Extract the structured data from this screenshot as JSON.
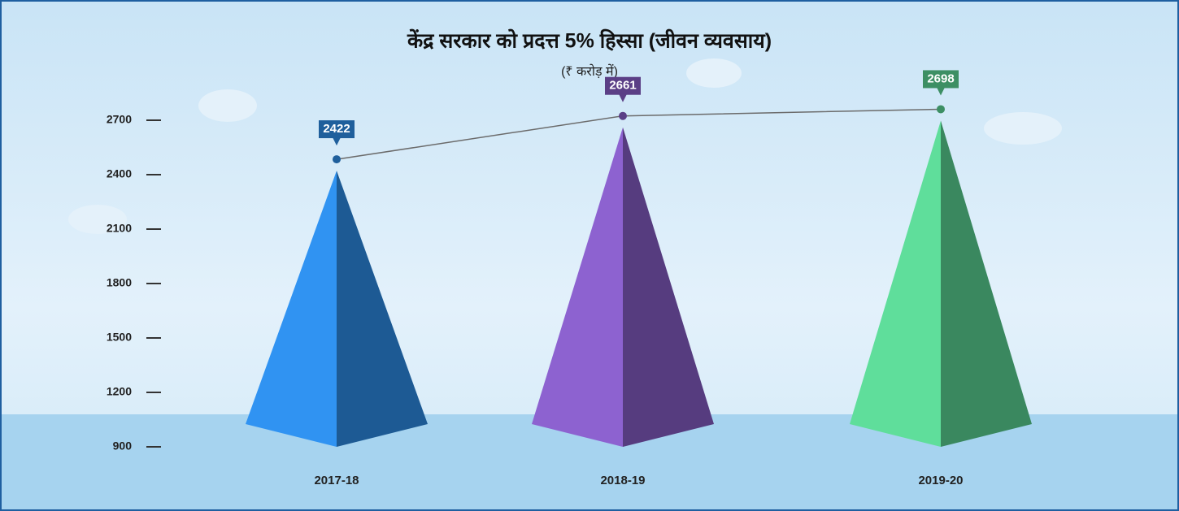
{
  "chart_data": {
    "type": "pyramid",
    "title": "केंद्र सरकार को प्रदत्त 5% हिस्सा (जीवन व्यवसाय)",
    "subtitle": "(₹ करोड़ में)",
    "categories": [
      "2017-18",
      "2018-19",
      "2019-20"
    ],
    "values": [
      2422,
      2661,
      2698
    ],
    "colors": [
      "#1f5f9c",
      "#5b3f86",
      "#3d8f64"
    ],
    "line_color": "#6b6b6b",
    "ylim": [
      900,
      2700
    ],
    "yticks": [
      900,
      1200,
      1500,
      1800,
      2100,
      2400,
      2700
    ]
  }
}
